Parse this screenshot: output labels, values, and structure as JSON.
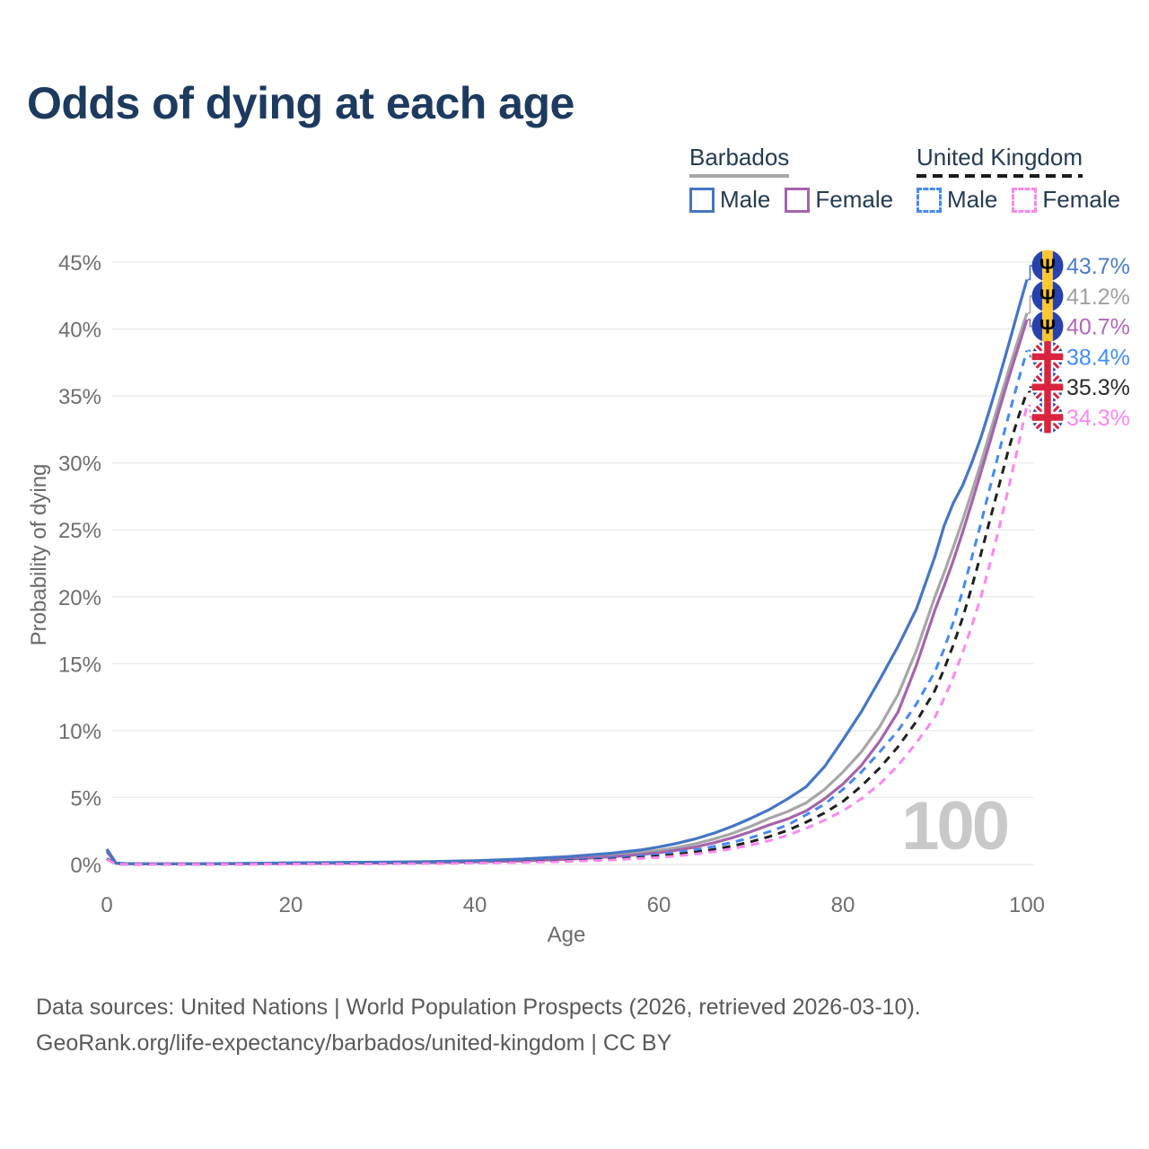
{
  "title": "Odds of dying at each age",
  "legend": {
    "groups": [
      {
        "id": "barbados",
        "label": "Barbados",
        "line_style": "solid",
        "line_color": "#a6a6a6",
        "items": [
          {
            "label": "Male",
            "color": "#4575c4",
            "dashed": false
          },
          {
            "label": "Female",
            "color": "#a564ab",
            "dashed": false
          }
        ]
      },
      {
        "id": "uk",
        "label": "United Kingdom",
        "line_style": "dashed",
        "line_color": "#1a1a1a",
        "items": [
          {
            "label": "Male",
            "color": "#4489f3",
            "dashed": true
          },
          {
            "label": "Female",
            "color": "#fb87ef",
            "dashed": true
          }
        ]
      }
    ]
  },
  "chart_data": {
    "type": "line",
    "title": "Odds of dying at each age",
    "xlabel": "Age",
    "ylabel": "Probability of dying",
    "xlim": [
      0,
      100
    ],
    "ylim": [
      0,
      45
    ],
    "xticks": [
      0,
      20,
      40,
      60,
      80,
      100
    ],
    "yticks": [
      0,
      5,
      10,
      15,
      20,
      25,
      30,
      35,
      40,
      45
    ],
    "ytick_suffix": "%",
    "grid": "horizontal-only",
    "legend_position": "top-right",
    "age_counter": "100",
    "ages": [
      0,
      1,
      2,
      5,
      10,
      15,
      20,
      25,
      30,
      35,
      40,
      45,
      50,
      55,
      58,
      60,
      62,
      64,
      66,
      68,
      70,
      72,
      74,
      76,
      78,
      80,
      82,
      84,
      86,
      88,
      90,
      91,
      92,
      93,
      94,
      95,
      96,
      97,
      98,
      99,
      100
    ],
    "series": [
      {
        "name": "Barbados Male",
        "country": "Barbados",
        "sex": "Male",
        "flag": "barbados",
        "color": "#4575c4",
        "label_color": "#4a7dc9",
        "dashed": false,
        "end_label": "43.7%",
        "end_value": 43.7,
        "values": [
          1.15,
          0.1,
          0.07,
          0.05,
          0.05,
          0.08,
          0.12,
          0.15,
          0.17,
          0.21,
          0.28,
          0.4,
          0.58,
          0.85,
          1.08,
          1.3,
          1.58,
          1.92,
          2.34,
          2.85,
          3.45,
          4.1,
          4.9,
          5.8,
          7.3,
          9.3,
          11.4,
          13.8,
          16.3,
          19.1,
          23.0,
          25.3,
          27.0,
          28.3,
          30.0,
          31.9,
          34.1,
          36.4,
          38.8,
          41.3,
          43.7
        ]
      },
      {
        "name": "Barbados Both sexes",
        "country": "Barbados",
        "sex": "Both",
        "flag": "barbados",
        "color": "#a6a6a6",
        "label_color": "#a0a0a0",
        "dashed": false,
        "end_label": "41.2%",
        "end_value": 41.2,
        "values": [
          1.05,
          0.09,
          0.06,
          0.04,
          0.04,
          0.07,
          0.09,
          0.11,
          0.14,
          0.17,
          0.23,
          0.32,
          0.47,
          0.7,
          0.89,
          1.05,
          1.27,
          1.55,
          1.9,
          2.32,
          2.85,
          3.45,
          3.95,
          4.6,
          5.6,
          6.9,
          8.4,
          10.3,
          12.7,
          16.0,
          20.0,
          21.8,
          23.7,
          25.7,
          27.8,
          30.0,
          32.3,
          34.6,
          36.9,
          39.1,
          41.2
        ]
      },
      {
        "name": "Barbados Female",
        "country": "Barbados",
        "sex": "Female",
        "flag": "barbados",
        "color": "#a564ab",
        "label_color": "#b168b5",
        "dashed": false,
        "end_label": "40.7%",
        "end_value": 40.7,
        "values": [
          0.95,
          0.08,
          0.06,
          0.04,
          0.04,
          0.05,
          0.07,
          0.09,
          0.11,
          0.14,
          0.19,
          0.26,
          0.38,
          0.58,
          0.74,
          0.88,
          1.07,
          1.31,
          1.62,
          2.0,
          2.45,
          2.95,
          3.4,
          4.0,
          4.9,
          6.0,
          7.4,
          9.2,
          11.4,
          14.9,
          19.0,
          20.8,
          22.7,
          24.8,
          27.0,
          29.3,
          31.6,
          34.0,
          36.3,
          38.5,
          40.7
        ]
      },
      {
        "name": "United Kingdom Male",
        "country": "United Kingdom",
        "sex": "Male",
        "flag": "uk",
        "color": "#4489f3",
        "label_color": "#418ef4",
        "dashed": true,
        "end_label": "38.4%",
        "end_value": 38.4,
        "values": [
          0.44,
          0.03,
          0.02,
          0.01,
          0.01,
          0.03,
          0.05,
          0.06,
          0.08,
          0.11,
          0.15,
          0.21,
          0.31,
          0.48,
          0.62,
          0.74,
          0.9,
          1.1,
          1.35,
          1.65,
          2.0,
          2.45,
          2.95,
          3.7,
          4.5,
          5.6,
          6.9,
          8.4,
          10.0,
          12.0,
          14.4,
          16.1,
          18.1,
          20.4,
          22.9,
          25.5,
          28.2,
          30.9,
          33.5,
          36.0,
          38.4
        ]
      },
      {
        "name": "United Kingdom Both sexes",
        "country": "United Kingdom",
        "sex": "Both",
        "flag": "uk",
        "color": "#1f1f1f",
        "label_color": "#2b2b2b",
        "dashed": true,
        "end_label": "35.3%",
        "end_value": 35.3,
        "values": [
          0.4,
          0.03,
          0.02,
          0.01,
          0.01,
          0.02,
          0.04,
          0.05,
          0.06,
          0.09,
          0.12,
          0.18,
          0.26,
          0.4,
          0.52,
          0.62,
          0.75,
          0.92,
          1.13,
          1.38,
          1.7,
          2.08,
          2.55,
          3.15,
          3.85,
          4.7,
          5.85,
          7.2,
          8.8,
          10.7,
          13.0,
          14.6,
          16.4,
          18.4,
          20.7,
          23.2,
          25.8,
          28.4,
          31.0,
          33.3,
          35.3
        ]
      },
      {
        "name": "United Kingdom Female",
        "country": "United Kingdom",
        "sex": "Female",
        "flag": "uk",
        "color": "#fb87ef",
        "label_color": "#ff85ee",
        "dashed": true,
        "end_label": "34.3%",
        "end_value": 34.3,
        "values": [
          0.37,
          0.03,
          0.02,
          0.01,
          0.01,
          0.02,
          0.03,
          0.04,
          0.05,
          0.07,
          0.1,
          0.15,
          0.22,
          0.34,
          0.44,
          0.52,
          0.64,
          0.78,
          0.96,
          1.18,
          1.45,
          1.78,
          2.18,
          2.7,
          3.3,
          4.0,
          4.9,
          6.0,
          7.4,
          9.1,
          11.0,
          12.4,
          14.0,
          15.8,
          17.8,
          20.0,
          22.5,
          25.2,
          28.1,
          31.1,
          34.3
        ]
      }
    ]
  },
  "footer": {
    "line1": "Data sources: United Nations | World Population Prospects (2026, retrieved 2026-03-10).",
    "line2": "GeoRank.org/life-expectancy/barbados/united-kingdom | CC BY"
  }
}
